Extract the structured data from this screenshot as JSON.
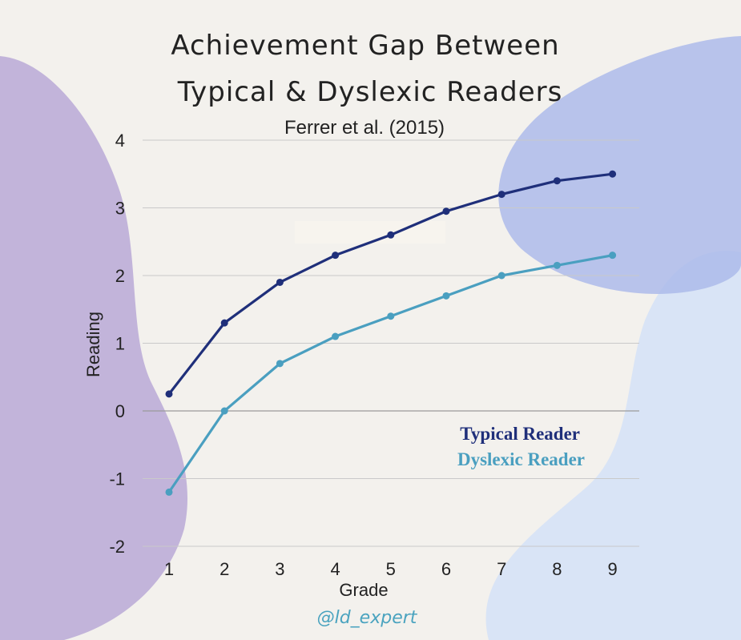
{
  "chart_data": {
    "type": "line",
    "title_line1": "Achievement Gap Between",
    "title_line2": "Typical & Dyslexic Readers",
    "subtitle": "Ferrer et al. (2015)",
    "xlabel": "Grade",
    "ylabel": "Reading",
    "x": [
      1,
      2,
      3,
      4,
      5,
      6,
      7,
      8,
      9
    ],
    "xticks": [
      "1",
      "2",
      "3",
      "4",
      "5",
      "6",
      "7",
      "8",
      "9"
    ],
    "yticks": [
      "4",
      "3",
      "2",
      "1",
      "0",
      "-1",
      "-2"
    ],
    "ylim": [
      -2,
      4
    ],
    "grid": true,
    "legend_position": "center-right",
    "series": [
      {
        "name": "Typical Reader",
        "color": "#1f2f7a",
        "values": [
          0.25,
          1.3,
          1.9,
          2.3,
          2.6,
          2.95,
          3.2,
          3.4,
          3.5
        ]
      },
      {
        "name": "Dyslexic Reader",
        "color": "#4a9fc0",
        "values": [
          -1.2,
          0.0,
          0.7,
          1.1,
          1.4,
          1.7,
          2.0,
          2.15,
          2.3
        ]
      }
    ]
  },
  "watermark": {
    "text": "@ld_expert",
    "color": "#4aa3bf"
  },
  "background": {
    "color": "#f3f1ed",
    "blob_purple": "#b9a9d6",
    "blob_blue": "#a9b8ea",
    "blob_light": "#d6e2f6"
  }
}
